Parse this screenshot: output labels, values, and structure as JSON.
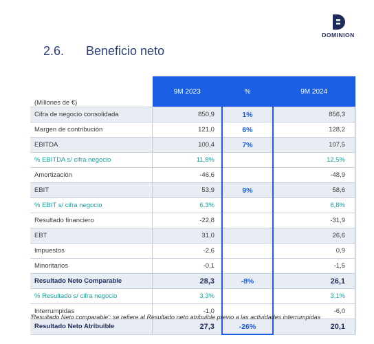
{
  "logo": {
    "text": "DOMINION"
  },
  "section": {
    "number": "2.6.",
    "title": "Beneficio neto"
  },
  "table": {
    "unit_label": "(Millones de €)",
    "headers": [
      "9M 2023",
      "%",
      "9M 2024"
    ],
    "rows": [
      {
        "label": "Cifra de negocio consolidada",
        "v2023": "850,9",
        "pct": "1%",
        "v2024": "856,3"
      },
      {
        "label": "Margen de contribución",
        "v2023": "121,0",
        "pct": "6%",
        "v2024": "128,2"
      },
      {
        "label": "EBITDA",
        "v2023": "100,4",
        "pct": "7%",
        "v2024": "107,5"
      },
      {
        "label": "% EBITDA s/ cifra negocio",
        "v2023": "11,8%",
        "pct": "",
        "v2024": "12,5%"
      },
      {
        "label": "Amortización",
        "v2023": "-46,6",
        "pct": "",
        "v2024": "-48,9"
      },
      {
        "label": "EBIT",
        "v2023": "53,9",
        "pct": "9%",
        "v2024": "58,6"
      },
      {
        "label": "% EBIT s/ cifra negocio",
        "v2023": "6,3%",
        "pct": "",
        "v2024": "6,8%"
      },
      {
        "label": "Resultado financiero",
        "v2023": "-22,8",
        "pct": "",
        "v2024": "-31,9"
      },
      {
        "label": "EBT",
        "v2023": "31,0",
        "pct": "",
        "v2024": "26,6"
      },
      {
        "label": "Impuestos",
        "v2023": "-2,6",
        "pct": "",
        "v2024": "0,9"
      },
      {
        "label": "Minoritarios",
        "v2023": "-0,1",
        "pct": "",
        "v2024": "-1,5"
      },
      {
        "label": "Resultado Neto Comparable",
        "v2023": "28,3",
        "pct": "-8%",
        "v2024": "26,1"
      },
      {
        "label": "% Resultado s/ cifra negocio",
        "v2023": "3,3%",
        "pct": "",
        "v2024": "3,1%"
      },
      {
        "label": "Interrumpidas",
        "v2023": "-1,0",
        "pct": "",
        "v2024": "-6,0"
      },
      {
        "label": "Resultado Neto Atribuible",
        "v2023": "27,3",
        "pct": "-26%",
        "v2024": "20,1"
      }
    ]
  },
  "footnote": "'Resultado Neto comparable': se refiere al Resultado neto atribuible previo a las actividades interrumpidas",
  "colors": {
    "header_bg": "#1a5ee6",
    "teal": "#1a9fa0",
    "navy": "#1d2a5c",
    "shade": "#e8ecf3"
  }
}
